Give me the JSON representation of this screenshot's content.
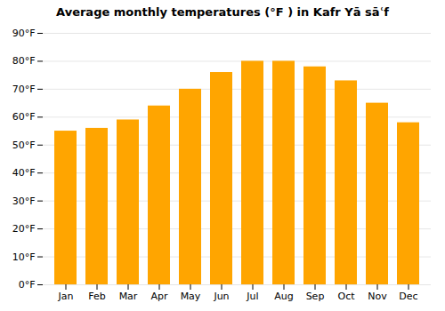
{
  "chart_data": {
    "type": "bar",
    "title": "Average monthly temperatures (°F ) in Kafr Yā sāʿf",
    "categories": [
      "Jan",
      "Feb",
      "Mar",
      "Apr",
      "May",
      "Jun",
      "Jul",
      "Aug",
      "Sep",
      "Oct",
      "Nov",
      "Dec"
    ],
    "values": [
      55,
      56,
      59,
      64,
      70,
      76,
      80,
      80,
      78,
      73,
      65,
      58
    ],
    "color": "#FFA500",
    "ylim": [
      0,
      90
    ],
    "yticks": [
      {
        "value": 0,
        "label": "0°F"
      },
      {
        "value": 10,
        "label": "10°F"
      },
      {
        "value": 20,
        "label": "20°F"
      },
      {
        "value": 30,
        "label": "30°F"
      },
      {
        "value": 40,
        "label": "40°F"
      },
      {
        "value": 50,
        "label": "50°F"
      },
      {
        "value": 60,
        "label": "60°F"
      },
      {
        "value": 70,
        "label": "70°F"
      },
      {
        "value": 80,
        "label": "80°F"
      },
      {
        "value": 90,
        "label": "90°F"
      }
    ],
    "grid": true
  }
}
